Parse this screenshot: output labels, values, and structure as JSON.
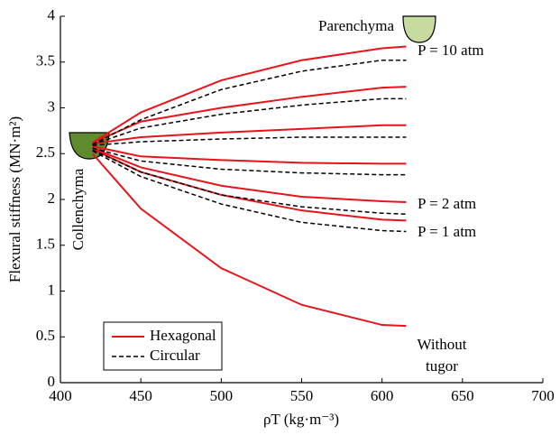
{
  "chart_data": {
    "type": "line",
    "x_label": "ρT (kg·m⁻³)",
    "y_label": "Flexural stiffness (MN·m²)",
    "xlim": [
      400,
      700
    ],
    "xticks": [
      400,
      450,
      500,
      550,
      600,
      650,
      700
    ],
    "ylim": [
      0,
      4
    ],
    "yticks": [
      0,
      0.5,
      1,
      1.5,
      2,
      2.5,
      3,
      3.5,
      4
    ],
    "x": [
      420,
      450,
      500,
      550,
      600,
      615
    ],
    "legend": [
      {
        "name": "Hexagonal",
        "color": "#e8141b",
        "dashed": false
      },
      {
        "name": "Circular",
        "color": "#000000",
        "dashed": true
      }
    ],
    "series": [
      {
        "color": "#e8141b",
        "dashed": false,
        "values": [
          2.62,
          2.95,
          3.3,
          3.52,
          3.65,
          3.67
        ]
      },
      {
        "color": "#e8141b",
        "dashed": false,
        "values": [
          2.62,
          2.85,
          3.0,
          3.12,
          3.22,
          3.23
        ]
      },
      {
        "color": "#e8141b",
        "dashed": false,
        "values": [
          2.61,
          2.68,
          2.73,
          2.77,
          2.81,
          2.81
        ]
      },
      {
        "color": "#e8141b",
        "dashed": false,
        "values": [
          2.58,
          2.47,
          2.43,
          2.4,
          2.39,
          2.39
        ]
      },
      {
        "color": "#e8141b",
        "dashed": false,
        "values": [
          2.56,
          2.35,
          2.15,
          2.03,
          1.98,
          1.97
        ]
      },
      {
        "color": "#e8141b",
        "dashed": false,
        "values": [
          2.55,
          2.3,
          2.05,
          1.88,
          1.78,
          1.77
        ]
      },
      {
        "color": "#e8141b",
        "dashed": false,
        "values": [
          2.5,
          1.9,
          1.25,
          0.85,
          0.63,
          0.62
        ]
      },
      {
        "color": "#000000",
        "dashed": true,
        "values": [
          2.6,
          2.87,
          3.2,
          3.4,
          3.52,
          3.52
        ]
      },
      {
        "color": "#000000",
        "dashed": true,
        "values": [
          2.6,
          2.78,
          2.93,
          3.03,
          3.1,
          3.1
        ]
      },
      {
        "color": "#000000",
        "dashed": true,
        "values": [
          2.59,
          2.63,
          2.66,
          2.68,
          2.68,
          2.68
        ]
      },
      {
        "color": "#000000",
        "dashed": true,
        "values": [
          2.56,
          2.42,
          2.33,
          2.29,
          2.27,
          2.27
        ]
      },
      {
        "color": "#000000",
        "dashed": true,
        "values": [
          2.54,
          2.3,
          2.05,
          1.92,
          1.85,
          1.84
        ]
      },
      {
        "color": "#000000",
        "dashed": true,
        "values": [
          2.53,
          2.25,
          1.95,
          1.75,
          1.66,
          1.65
        ]
      }
    ],
    "annotations": {
      "p10": "P = 10 atm",
      "p2": "P = 2 atm",
      "p1": "P = 1 atm",
      "without_tugor": [
        "Without",
        "tugor"
      ],
      "parenchyma": "Parenchyma",
      "collenchyma": "Collenchyma"
    }
  }
}
